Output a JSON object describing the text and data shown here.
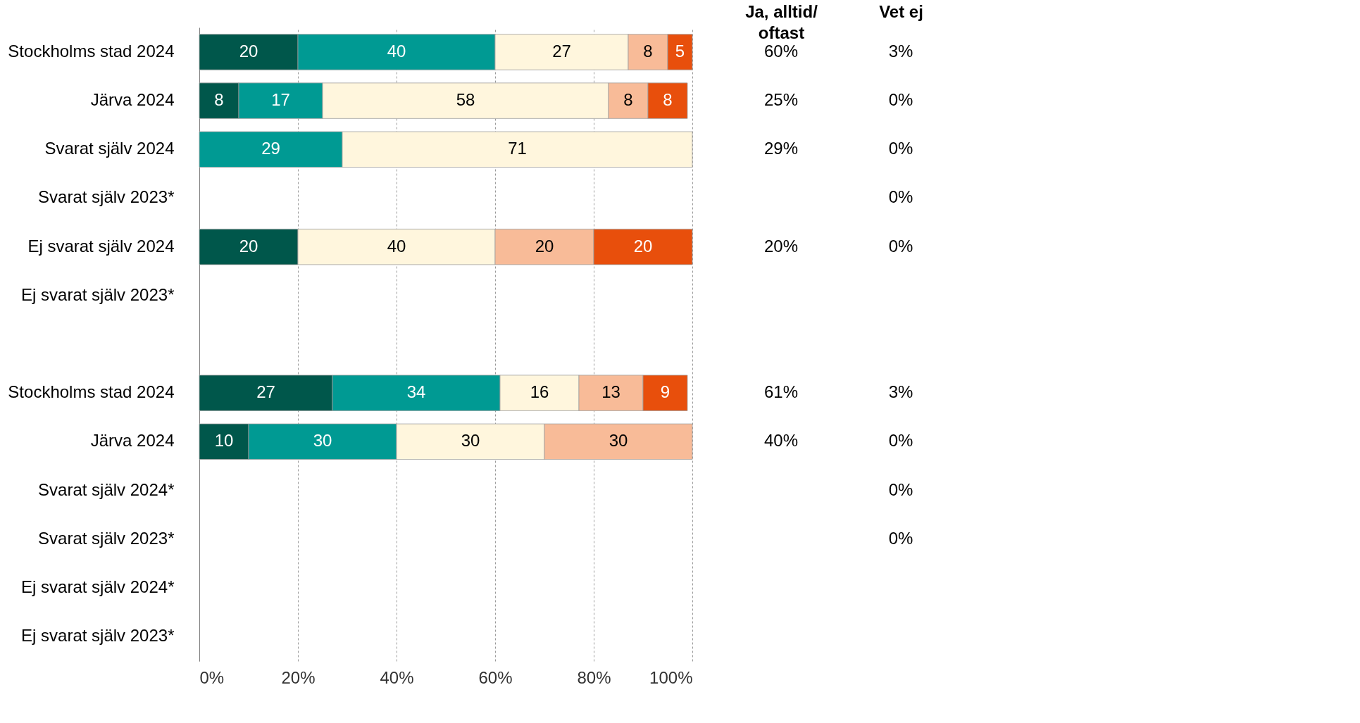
{
  "chart_data": [
    {
      "type": "bar",
      "orientation": "horizontal",
      "stacked": true,
      "data_labels": true,
      "grid": "x",
      "categories": [
        "Stockholms stad 2024",
        "Järva 2024",
        "Svarat själv 2024",
        "Svarat själv 2023*",
        "Ej svarat själv 2024",
        "Ej svarat själv 2023*",
        null,
        "Stockholms stad 2024",
        "Järva 2024",
        "Svarat själv 2024*",
        "Svarat själv 2023*",
        "Ej svarat själv 2024*",
        "Ej svarat själv 2023*"
      ],
      "xlim": [
        0,
        100
      ],
      "xticks": [
        {
          "value": 0,
          "label": "0%"
        },
        {
          "value": 20,
          "label": "20%"
        },
        {
          "value": 40,
          "label": "40%"
        },
        {
          "value": 60,
          "label": "60%"
        },
        {
          "value": 80,
          "label": "80%"
        },
        {
          "value": 100,
          "label": "100%"
        }
      ],
      "series": [
        {
          "color": "#00574b",
          "values": [
            20,
            8,
            null,
            null,
            20,
            null,
            null,
            27,
            10,
            null,
            null,
            null,
            null
          ]
        },
        {
          "color": "#009a93",
          "values": [
            40,
            17,
            29,
            null,
            null,
            null,
            null,
            34,
            30,
            null,
            null,
            null,
            null
          ]
        },
        {
          "color": "#fff6dd",
          "values": [
            27,
            58,
            71,
            null,
            40,
            null,
            null,
            16,
            30,
            null,
            null,
            null,
            null
          ]
        },
        {
          "color": "#f8bb98",
          "values": [
            8,
            8,
            null,
            null,
            20,
            null,
            null,
            13,
            30,
            null,
            null,
            null,
            null
          ]
        },
        {
          "color": "#e84f0c",
          "values": [
            5,
            8,
            null,
            null,
            20,
            null,
            null,
            9,
            null,
            null,
            null,
            null,
            null
          ]
        }
      ]
    },
    {
      "type": "other",
      "categories": [
        "Ja, alltid/\noftast",
        "Vet ej"
      ],
      "cell_labels": [
        [
          "60%",
          "3%"
        ],
        [
          "25%",
          "0%"
        ],
        [
          "29%",
          "0%"
        ],
        [
          null,
          "0%"
        ],
        [
          "20%",
          "0%"
        ],
        [
          null,
          null
        ],
        [
          null,
          null
        ],
        [
          "61%",
          "3%"
        ],
        [
          "40%",
          "0%"
        ],
        [
          null,
          "0%"
        ],
        [
          null,
          "0%"
        ],
        [
          null,
          null
        ],
        [
          null,
          null
        ]
      ]
    }
  ]
}
